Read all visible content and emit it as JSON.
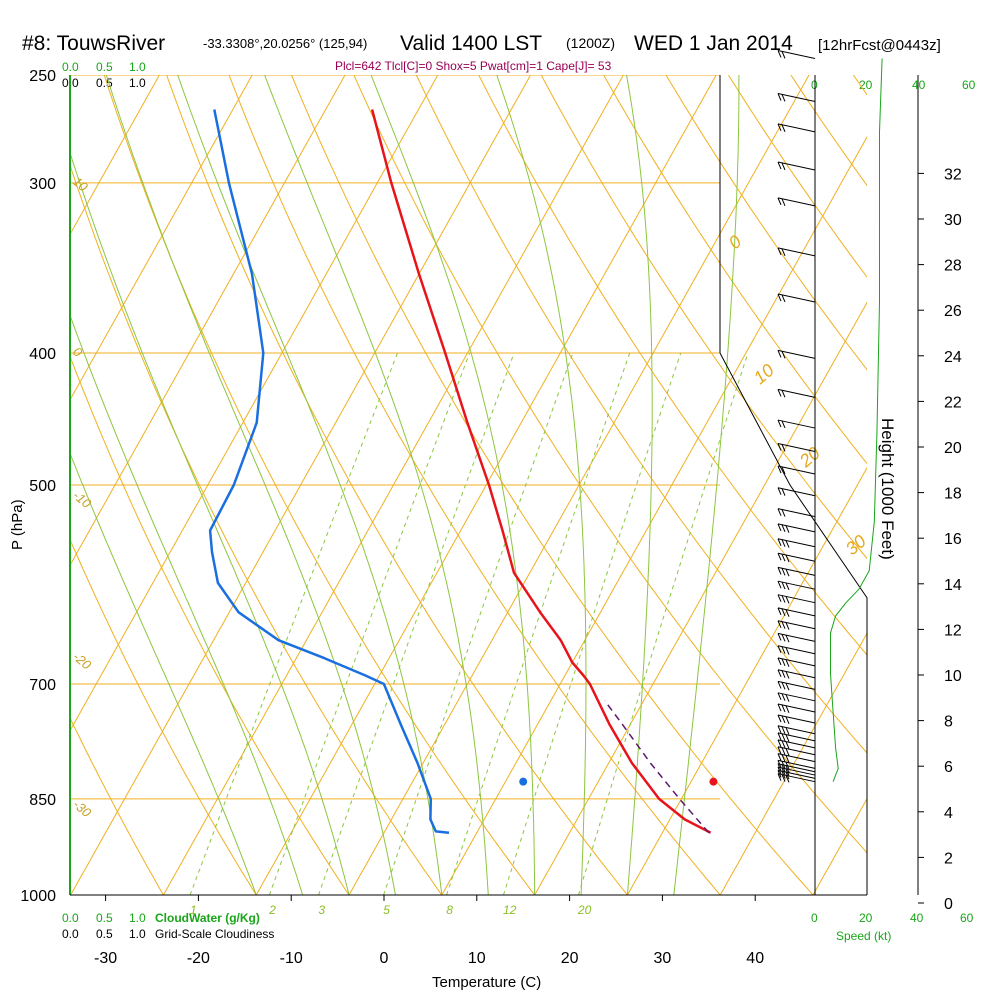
{
  "header": {
    "station": "#8: TouwsRiver",
    "coords": "-33.3308°,20.0256° (125,94)",
    "valid_prefix": "Valid 1400 LST",
    "valid_z": "(1200Z)",
    "date": "WED 1 Jan 2014",
    "forecast": "[12hrFcst@0443z]",
    "params": "Plcl=642 Tlcl[C]=0 Shox=5 Pwat[cm]=1 Cape[J]= 53"
  },
  "left_scales": {
    "cloudwater_ticks": [
      "0.0",
      "0.5",
      "1.0"
    ],
    "cloudiness_ticks": [
      "0.0",
      "0.5",
      "1.0"
    ],
    "cloudwater_label": "CloudWater (g/Kg)",
    "cloudiness_label": "Grid-Scale Cloudiness"
  },
  "speed_axis": {
    "ticks": [
      "0",
      "20",
      "40",
      "60"
    ],
    "label": "Speed (kt)"
  },
  "colors": {
    "isotherm": "#f0b020",
    "dry_adiabat": "#f0b020",
    "moist_adiabat": "#8cc63f",
    "mixing_ratio": "#8cc63f",
    "temperature": "#e8141b",
    "dewpoint": "#1a6fe0",
    "parcel": "#5b1a6e",
    "wind_speed": "#1aa51a"
  },
  "chart_data": {
    "type": "line",
    "subtype": "skew-T log-p sounding",
    "xlabel": "Temperature (C)",
    "ylabel": "P (hPa)",
    "x_ticks": [
      -30,
      -20,
      -10,
      0,
      10,
      20,
      30,
      40
    ],
    "xlim": [
      -33,
      47
    ],
    "p_ticks": [
      250,
      300,
      400,
      500,
      700,
      850,
      1000
    ],
    "ylim": [
      1000,
      250
    ],
    "height_axis": {
      "label": "Height (1000 Feet)",
      "ticks": [
        0,
        2,
        4,
        6,
        8,
        10,
        12,
        14,
        16,
        18,
        20,
        22,
        24,
        26,
        28,
        30,
        32
      ]
    },
    "isotherm_labels": [
      {
        "t": 0,
        "text": "0"
      },
      {
        "t": 10,
        "text": "10"
      },
      {
        "t": 20,
        "text": "20"
      },
      {
        "t": 30,
        "text": "30"
      }
    ],
    "left_isotherm_labels": [
      {
        "p": 300,
        "text": "10"
      },
      {
        "p": 400,
        "text": "0"
      },
      {
        "p": 510,
        "text": "-10"
      },
      {
        "p": 670,
        "text": "-20"
      },
      {
        "p": 860,
        "text": "-30"
      }
    ],
    "mixing_ratio_labels": [
      "1",
      "2",
      "3",
      "5",
      "8",
      "12",
      "20"
    ],
    "series": [
      {
        "name": "temperature",
        "values": [
          {
            "p": 900,
            "t": 35.2
          },
          {
            "p": 880,
            "t": 31.6
          },
          {
            "p": 850,
            "t": 27.6
          },
          {
            "p": 800,
            "t": 22.5
          },
          {
            "p": 750,
            "t": 17.8
          },
          {
            "p": 700,
            "t": 13.2
          },
          {
            "p": 690,
            "t": 12.0
          },
          {
            "p": 675,
            "t": 10.0
          },
          {
            "p": 650,
            "t": 7.4
          },
          {
            "p": 620,
            "t": 3.5
          },
          {
            "p": 580,
            "t": -1.7
          },
          {
            "p": 540,
            "t": -5.5
          },
          {
            "p": 500,
            "t": -9.7
          },
          {
            "p": 450,
            "t": -15.8
          },
          {
            "p": 400,
            "t": -22.4
          },
          {
            "p": 350,
            "t": -30.0
          },
          {
            "p": 300,
            "t": -38.5
          },
          {
            "p": 265,
            "t": -45.0
          }
        ]
      },
      {
        "name": "dewpoint",
        "values": [
          {
            "p": 900,
            "t": 7.0
          },
          {
            "p": 898,
            "t": 5.5
          },
          {
            "p": 880,
            "t": 4.2
          },
          {
            "p": 850,
            "t": 3.0
          },
          {
            "p": 800,
            "t": -0.6
          },
          {
            "p": 750,
            "t": -4.7
          },
          {
            "p": 700,
            "t": -9.0
          },
          {
            "p": 690,
            "t": -11.5
          },
          {
            "p": 670,
            "t": -17.0
          },
          {
            "p": 650,
            "t": -23.0
          },
          {
            "p": 620,
            "t": -29.0
          },
          {
            "p": 590,
            "t": -33.0
          },
          {
            "p": 560,
            "t": -35.5
          },
          {
            "p": 540,
            "t": -37.0
          },
          {
            "p": 500,
            "t": -37.2
          },
          {
            "p": 450,
            "t": -38.5
          },
          {
            "p": 400,
            "t": -42.0
          },
          {
            "p": 350,
            "t": -48.0
          },
          {
            "p": 300,
            "t": -56.0
          },
          {
            "p": 265,
            "t": -62.0
          }
        ]
      },
      {
        "name": "parcel",
        "values": [
          {
            "p": 900,
            "t": 35.0
          },
          {
            "p": 850,
            "t": 29.8
          },
          {
            "p": 800,
            "t": 24.5
          },
          {
            "p": 750,
            "t": 19.2
          },
          {
            "p": 720,
            "t": 15.8
          }
        ]
      }
    ],
    "surface_markers": {
      "temperature": 35.5,
      "dewpoint": 15.0,
      "p": 900
    },
    "wind_barbs": [
      {
        "p": 900,
        "barbs": 3
      },
      {
        "p": 895,
        "barbs": 3
      },
      {
        "p": 890,
        "barbs": 3
      },
      {
        "p": 885,
        "barbs": 3
      },
      {
        "p": 880,
        "barbs": 3
      },
      {
        "p": 870,
        "barbs": 3
      },
      {
        "p": 860,
        "barbs": 3
      },
      {
        "p": 850,
        "barbs": 3
      },
      {
        "p": 840,
        "barbs": 3
      },
      {
        "p": 830,
        "barbs": 3
      },
      {
        "p": 815,
        "barbs": 3
      },
      {
        "p": 800,
        "barbs": 3
      },
      {
        "p": 785,
        "barbs": 3
      },
      {
        "p": 770,
        "barbs": 3
      },
      {
        "p": 755,
        "barbs": 3
      },
      {
        "p": 740,
        "barbs": 3
      },
      {
        "p": 725,
        "barbs": 3
      },
      {
        "p": 710,
        "barbs": 3
      },
      {
        "p": 695,
        "barbs": 3
      },
      {
        "p": 680,
        "barbs": 3
      },
      {
        "p": 665,
        "barbs": 3
      },
      {
        "p": 650,
        "barbs": 3
      },
      {
        "p": 635,
        "barbs": 3
      },
      {
        "p": 620,
        "barbs": 3
      },
      {
        "p": 605,
        "barbs": 3
      },
      {
        "p": 590,
        "barbs": 3
      },
      {
        "p": 575,
        "barbs": 2
      },
      {
        "p": 555,
        "barbs": 2
      },
      {
        "p": 535,
        "barbs": 2
      },
      {
        "p": 515,
        "barbs": 2
      },
      {
        "p": 495,
        "barbs": 2
      },
      {
        "p": 470,
        "barbs": 2
      },
      {
        "p": 440,
        "barbs": 2
      },
      {
        "p": 400,
        "barbs": 2
      },
      {
        "p": 370,
        "barbs": 2
      },
      {
        "p": 340,
        "barbs": 2
      },
      {
        "p": 320,
        "barbs": 2
      },
      {
        "p": 300,
        "barbs": 2
      },
      {
        "p": 285,
        "barbs": 2
      },
      {
        "p": 265,
        "barbs": 2
      }
    ],
    "wind_speed_profile": [
      {
        "p": 900,
        "spd": 7
      },
      {
        "p": 880,
        "spd": 9
      },
      {
        "p": 850,
        "spd": 8
      },
      {
        "p": 800,
        "spd": 7
      },
      {
        "p": 750,
        "spd": 6
      },
      {
        "p": 700,
        "spd": 6
      },
      {
        "p": 680,
        "spd": 8
      },
      {
        "p": 665,
        "spd": 12
      },
      {
        "p": 650,
        "spd": 17
      },
      {
        "p": 630,
        "spd": 21
      },
      {
        "p": 580,
        "spd": 23
      },
      {
        "p": 500,
        "spd": 24
      },
      {
        "p": 400,
        "spd": 25
      },
      {
        "p": 300,
        "spd": 25
      },
      {
        "p": 265,
        "spd": 26
      }
    ]
  }
}
